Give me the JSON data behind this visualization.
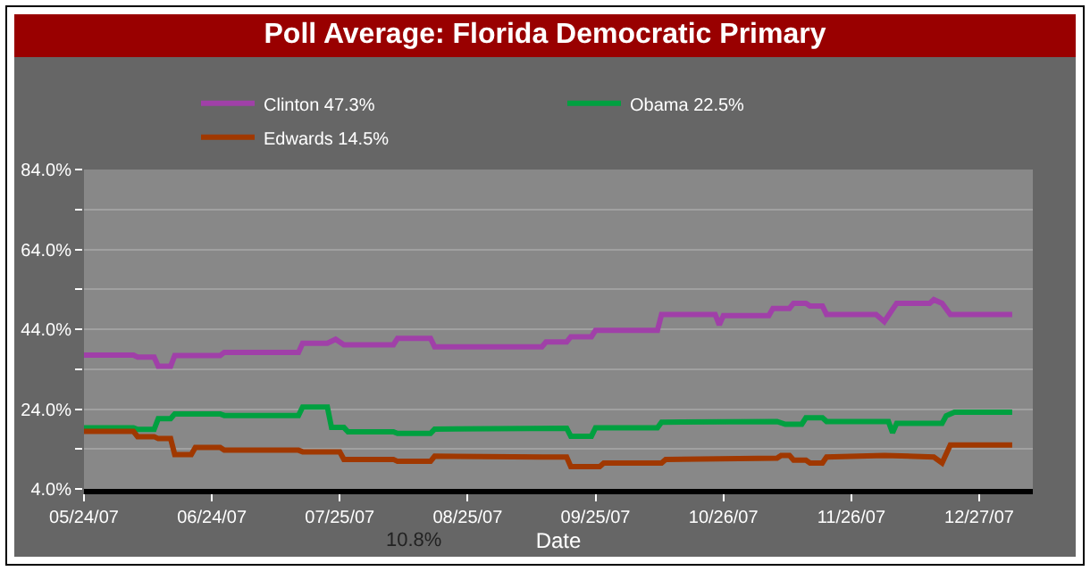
{
  "chart_data": {
    "type": "line",
    "title": "Poll Average: Florida Democratic Primary",
    "xlabel": "Date",
    "xlim": [
      "2007-05-24",
      "2008-01-09"
    ],
    "xticks": [
      {
        "value": "2007-05-24",
        "label": "05/24/07"
      },
      {
        "value": "2007-06-24",
        "label": "06/24/07"
      },
      {
        "value": "2007-07-25",
        "label": "07/25/07"
      },
      {
        "value": "2007-08-25",
        "label": "08/25/07"
      },
      {
        "value": "2007-09-25",
        "label": "09/25/07"
      },
      {
        "value": "2007-10-26",
        "label": "10/26/07"
      },
      {
        "value": "2007-11-26",
        "label": "11/26/07"
      },
      {
        "value": "2007-12-27",
        "label": "12/27/07"
      }
    ],
    "ylim": [
      4,
      84
    ],
    "yticks": [
      {
        "value": 4,
        "label": "4.0%"
      },
      {
        "value": 14,
        "label": null
      },
      {
        "value": 24,
        "label": "24.0%"
      },
      {
        "value": 34,
        "label": null
      },
      {
        "value": 44,
        "label": "44.0%"
      },
      {
        "value": 54,
        "label": null
      },
      {
        "value": 64,
        "label": "64.0%"
      },
      {
        "value": 74,
        "label": null
      },
      {
        "value": 84,
        "label": "84.0%"
      }
    ],
    "grid": "y",
    "legend": "top",
    "marker": "none",
    "line_style": "solid",
    "annotations": [
      "10.8%"
    ],
    "series": [
      {
        "name": "Clinton 47.3%",
        "color": "#a040a8",
        "x": [
          "2007-05-24",
          "2007-06-05",
          "2007-06-06",
          "2007-06-10",
          "2007-06-11",
          "2007-06-14",
          "2007-06-15",
          "2007-06-26",
          "2007-06-27",
          "2007-07-15",
          "2007-07-16",
          "2007-07-22",
          "2007-07-24",
          "2007-07-26",
          "2007-08-07",
          "2007-08-08",
          "2007-08-16",
          "2007-08-17",
          "2007-09-12",
          "2007-09-13",
          "2007-09-18",
          "2007-09-19",
          "2007-09-24",
          "2007-09-25",
          "2007-10-10",
          "2007-10-11",
          "2007-10-24",
          "2007-10-25",
          "2007-10-26",
          "2007-11-06",
          "2007-11-07",
          "2007-11-11",
          "2007-11-12",
          "2007-11-15",
          "2007-11-16",
          "2007-11-19",
          "2007-11-20",
          "2007-12-02",
          "2007-12-04",
          "2007-12-07",
          "2007-12-15",
          "2007-12-16",
          "2007-12-18",
          "2007-12-20",
          "2008-01-04"
        ],
        "values": [
          37.5,
          37.5,
          37,
          37,
          34.7,
          34.7,
          37.4,
          37.4,
          38.2,
          38.2,
          40.5,
          40.5,
          41.5,
          40.1,
          40.1,
          41.7,
          41.7,
          39.6,
          39.6,
          40.8,
          40.8,
          42.1,
          42.1,
          43.7,
          43.7,
          47.7,
          47.7,
          45.1,
          47.4,
          47.4,
          49.2,
          49.2,
          50.5,
          50.5,
          49.8,
          49.8,
          47.7,
          47.7,
          45.9,
          50.5,
          50.5,
          51.4,
          50.5,
          47.7,
          47.7
        ]
      },
      {
        "name": "Obama 22.5%",
        "color": "#00a040",
        "x": [
          "2007-05-24",
          "2007-06-05",
          "2007-06-06",
          "2007-06-10",
          "2007-06-11",
          "2007-06-14",
          "2007-06-15",
          "2007-06-26",
          "2007-06-27",
          "2007-07-15",
          "2007-07-16",
          "2007-07-22",
          "2007-07-23",
          "2007-07-26",
          "2007-07-27",
          "2007-08-07",
          "2007-08-08",
          "2007-08-16",
          "2007-08-17",
          "2007-09-18",
          "2007-09-19",
          "2007-09-24",
          "2007-09-25",
          "2007-10-10",
          "2007-10-11",
          "2007-11-08",
          "2007-11-10",
          "2007-11-14",
          "2007-11-15",
          "2007-11-19",
          "2007-11-20",
          "2007-12-05",
          "2007-12-06",
          "2007-12-07",
          "2007-12-18",
          "2007-12-19",
          "2007-12-21",
          "2008-01-04"
        ],
        "values": [
          19.3,
          19.3,
          18.9,
          18.9,
          21.6,
          21.6,
          22.8,
          22.8,
          22.4,
          22.4,
          24.5,
          24.5,
          19.4,
          19.4,
          18.3,
          18.3,
          17.9,
          17.9,
          19,
          19.2,
          17.2,
          17.2,
          19.3,
          19.3,
          20.7,
          20.9,
          20.2,
          20.2,
          21.8,
          21.8,
          20.9,
          20.9,
          18.1,
          20.4,
          20.4,
          22.3,
          23.2,
          23.2
        ]
      },
      {
        "name": "Edwards 14.5%",
        "color": "#a03800",
        "x": [
          "2007-05-24",
          "2007-06-05",
          "2007-06-06",
          "2007-06-10",
          "2007-06-11",
          "2007-06-14",
          "2007-06-15",
          "2007-06-19",
          "2007-06-20",
          "2007-06-26",
          "2007-06-27",
          "2007-07-15",
          "2007-07-16",
          "2007-07-25",
          "2007-07-26",
          "2007-08-07",
          "2007-08-08",
          "2007-08-16",
          "2007-08-17",
          "2007-09-12",
          "2007-09-18",
          "2007-09-19",
          "2007-09-26",
          "2007-09-27",
          "2007-10-11",
          "2007-10-12",
          "2007-11-08",
          "2007-11-09",
          "2007-11-11",
          "2007-11-12",
          "2007-11-15",
          "2007-11-16",
          "2007-11-19",
          "2007-11-20",
          "2007-12-04",
          "2007-12-16",
          "2007-12-18",
          "2007-12-20",
          "2008-01-04"
        ],
        "values": [
          18.4,
          18.4,
          17.1,
          17.1,
          16.6,
          16.6,
          12.6,
          12.6,
          14.4,
          14.4,
          13.7,
          13.7,
          13.3,
          13.3,
          11.4,
          11.4,
          10.9,
          10.9,
          12.2,
          12,
          12,
          9.6,
          9.6,
          10.5,
          10.5,
          11.4,
          11.7,
          12.4,
          12.4,
          11.2,
          11.2,
          10.5,
          10.5,
          12,
          12.4,
          12,
          10.5,
          15,
          15
        ]
      }
    ]
  }
}
